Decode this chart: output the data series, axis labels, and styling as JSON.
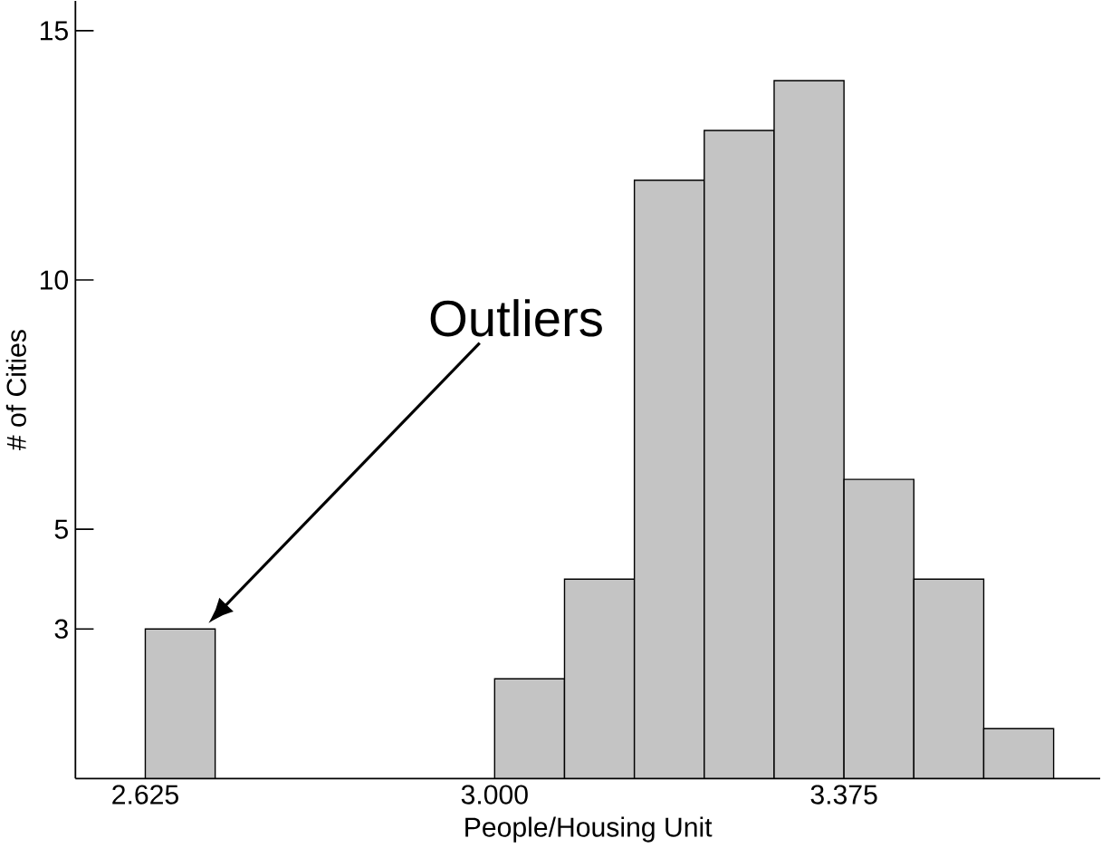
{
  "chart_data": {
    "type": "histogram",
    "xlabel": "People/Housing Unit",
    "ylabel": "# of Cities",
    "bins": [
      2.625,
      2.7,
      2.775,
      2.85,
      2.925,
      3.0,
      3.075,
      3.15,
      3.225,
      3.3,
      3.375,
      3.45,
      3.525,
      3.6
    ],
    "values": [
      3,
      null,
      null,
      null,
      null,
      2,
      4,
      12,
      13,
      14,
      6,
      4,
      1
    ],
    "color": "#c4c4c4",
    "xlim": [
      2.55,
      3.65
    ],
    "ylim": [
      0,
      15.6
    ],
    "xticks": [
      {
        "value": 2.625,
        "label": "2.625"
      },
      {
        "value": 3.0,
        "label": "3.000"
      },
      {
        "value": 3.375,
        "label": "3.375"
      }
    ],
    "yticks": [
      3,
      5,
      10,
      15
    ],
    "annotations": [
      "Outliers"
    ],
    "grid": false
  }
}
